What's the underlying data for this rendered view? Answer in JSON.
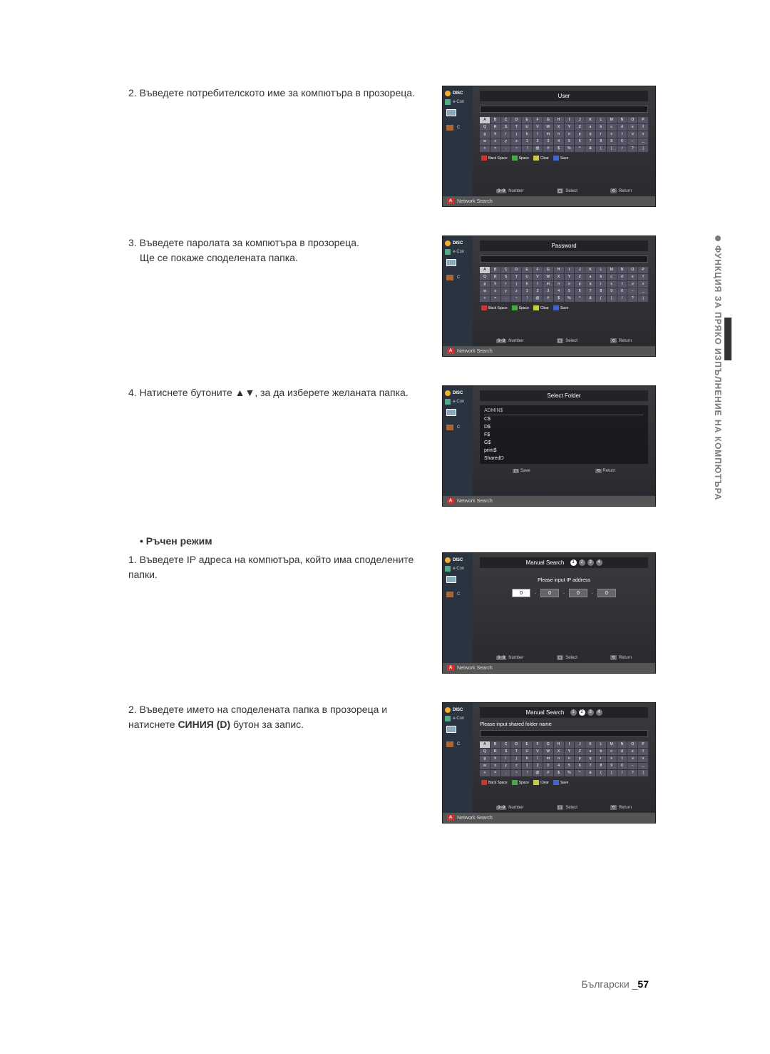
{
  "side_label": "ФУНКЦИЯ ЗА ПРЯКО ИЗПЪЛНЕНИЕ НА КОМПЮТЪРА",
  "footer_lang": "Български _",
  "footer_page": "57",
  "manual_heading": "• Ръчен режим",
  "steps": [
    {
      "num": "2.",
      "body": "Въведете потребителското име за компютъра в прозореца."
    },
    {
      "num": "3.",
      "body": "Въведете паролата за компютъра в прозореца.",
      "sub": "Ще се покаже споделената папка."
    },
    {
      "num": "4.",
      "body": "Натиснете бутоните ▲▼, за да изберете желаната папка."
    },
    {
      "num": "1.",
      "body": "Въведете IP адреса на компютъра, който има споделените папки."
    },
    {
      "num": "2.",
      "body_pre": "Въведете името на споделената папка в прозореца и натиснете ",
      "body_bold": "СИНИЯ (D)",
      "body_post": " бутон за запис."
    }
  ],
  "ss_common": {
    "sidebar_disc": "DISC",
    "sidebar_econ": "e-Con",
    "sidebar_c": "C",
    "footer": "Network Search",
    "hints_number": "Number",
    "hints_select": "Select",
    "hints_return": "Return",
    "hints_save": "Save",
    "kctrl_back": "Back Space",
    "kctrl_space": "Space",
    "kctrl_clear": "Clear",
    "kctrl_save": "Save"
  },
  "ss1": {
    "title": "User"
  },
  "ss2": {
    "title": "Password"
  },
  "ss3": {
    "title": "Select Folder",
    "header": "ADMIN$",
    "folders": [
      "C$",
      "D$",
      "F$",
      "G$",
      "print$",
      "SharedD"
    ]
  },
  "ss4": {
    "title": "Manual Search",
    "prompt": "Please input IP address",
    "octets": [
      "0",
      "0",
      "0",
      "0"
    ]
  },
  "ss5": {
    "title": "Manual Search",
    "prompt": "Please input shared folder name"
  },
  "kbd_rows": [
    [
      "A",
      "B",
      "C",
      "D",
      "E",
      "F",
      "G",
      "H",
      "I",
      "J",
      "K",
      "L",
      "M",
      "N",
      "O",
      "P"
    ],
    [
      "Q",
      "R",
      "S",
      "T",
      "U",
      "V",
      "W",
      "X",
      "Y",
      "Z",
      "a",
      "b",
      "c",
      "d",
      "e",
      "f"
    ],
    [
      "g",
      "h",
      "i",
      "j",
      "k",
      "l",
      "m",
      "n",
      "o",
      "p",
      "q",
      "r",
      "s",
      "t",
      "u",
      "v"
    ],
    [
      "w",
      "x",
      "y",
      "z",
      "1",
      "2",
      "3",
      "4",
      "5",
      "6",
      "7",
      "8",
      "9",
      "0",
      "−",
      "_"
    ],
    [
      "+",
      "=",
      ".",
      "~",
      "!",
      "@",
      "#",
      "$",
      "%",
      "^",
      "&",
      "(",
      ")",
      "/",
      "?",
      "|"
    ]
  ],
  "colors": {
    "page_bg": "#ffffff",
    "text": "#333333",
    "ss_bg": "#3a3a3f",
    "sidebar_bg": "#2a3340",
    "footer_bg": "#555555",
    "key_bg": "#556",
    "key_hi_bg": "#c9cbd1",
    "red": "#cc3333",
    "green": "#44aa44",
    "yellow": "#cccc44",
    "blue": "#4466cc",
    "side_label": "#7a7a7a"
  }
}
